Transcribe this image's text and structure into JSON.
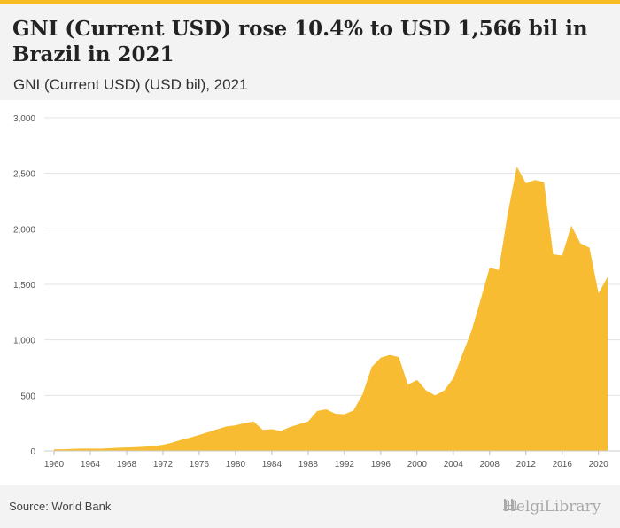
{
  "title": "GNI (Current USD) rose 10.4% to USD 1,566 bil in Brazil in 2021",
  "subtitle": "GNI (Current USD) (USD bil), 2021",
  "source": "Source: World Bank",
  "logo_text": "HelgiLibrary",
  "colors": {
    "accent": "#f6bd22",
    "area": "#f7bc31",
    "grid": "#e3e3e3",
    "axis_text": "#555555"
  },
  "chart_data": {
    "type": "area",
    "title": "GNI (Current USD) rose 10.4% to USD 1,566 bil in Brazil in 2021",
    "subtitle": "GNI (Current USD) (USD bil), 2021",
    "xlabel": "",
    "ylabel": "",
    "ylim": [
      0,
      3000
    ],
    "y_ticks": [
      0,
      500,
      1000,
      1500,
      2000,
      2500,
      3000
    ],
    "y_tick_labels": [
      "0",
      "500",
      "1,000",
      "1,500",
      "2,000",
      "2,500",
      "3,000"
    ],
    "x_ticks": [
      1960,
      1964,
      1968,
      1972,
      1976,
      1980,
      1984,
      1988,
      1992,
      1996,
      2000,
      2004,
      2008,
      2012,
      2016,
      2020
    ],
    "grid": true,
    "legend": "none",
    "x": [
      1960,
      1961,
      1962,
      1963,
      1964,
      1965,
      1966,
      1967,
      1968,
      1969,
      1970,
      1971,
      1972,
      1973,
      1974,
      1975,
      1976,
      1977,
      1978,
      1979,
      1980,
      1981,
      1982,
      1983,
      1984,
      1985,
      1986,
      1987,
      1988,
      1989,
      1990,
      1991,
      1992,
      1993,
      1994,
      1995,
      1996,
      1997,
      1998,
      1999,
      2000,
      2001,
      2002,
      2003,
      2004,
      2005,
      2006,
      2007,
      2008,
      2009,
      2010,
      2011,
      2012,
      2013,
      2014,
      2015,
      2016,
      2017,
      2018,
      2019,
      2020,
      2021
    ],
    "series": [
      {
        "values": [
          15,
          15,
          18,
          21,
          21,
          20,
          24,
          28,
          31,
          34,
          38,
          45,
          55,
          75,
          100,
          120,
          145,
          170,
          195,
          220,
          230,
          250,
          265,
          190,
          195,
          180,
          215,
          240,
          265,
          360,
          375,
          335,
          330,
          365,
          510,
          755,
          840,
          865,
          845,
          595,
          640,
          545,
          500,
          545,
          655,
          870,
          1080,
          1360,
          1650,
          1630,
          2140,
          2560,
          2410,
          2440,
          2420,
          1770,
          1760,
          2030,
          1870,
          1830,
          1420,
          1566
        ]
      }
    ]
  }
}
